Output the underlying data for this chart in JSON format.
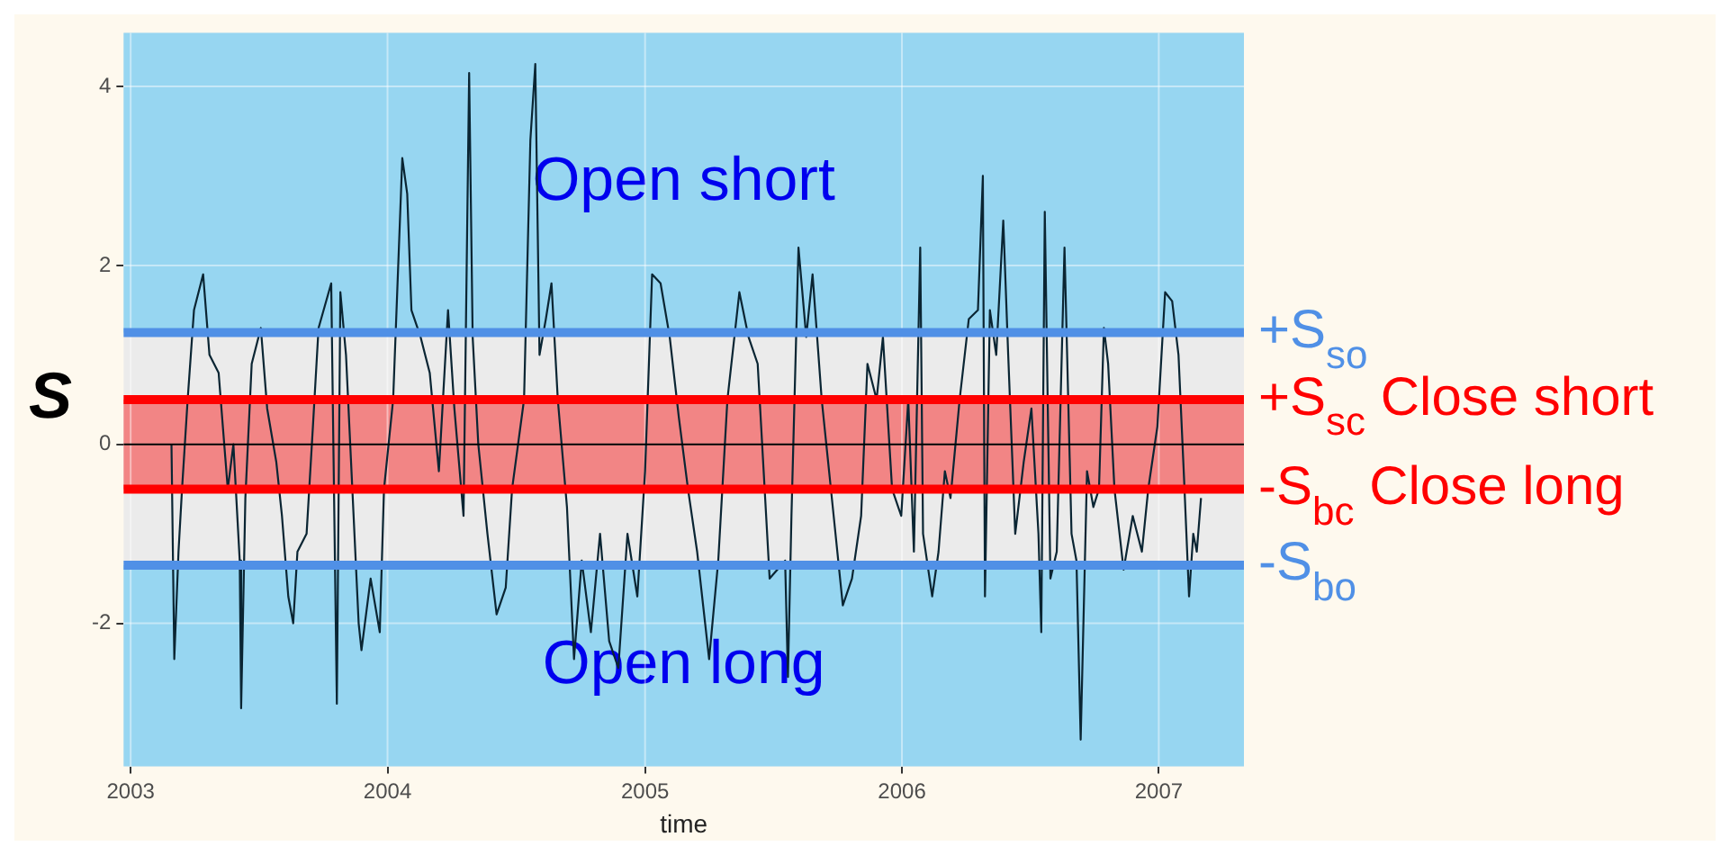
{
  "chart_data": {
    "type": "line",
    "xlabel": "time",
    "ylabel": "S",
    "x": [
      "2003-02-28",
      "2003-03-04",
      "2003-03-10",
      "2003-03-15",
      "2003-03-23",
      "2003-04-01",
      "2003-04-14",
      "2003-04-23",
      "2003-05-06",
      "2003-05-19",
      "2003-05-27",
      "2003-06-05",
      "2003-06-07",
      "2003-06-13",
      "2003-06-22",
      "2003-07-05",
      "2003-07-14",
      "2003-07-27",
      "2003-08-04",
      "2003-08-13",
      "2003-08-20",
      "2003-08-26",
      "2003-09-08",
      "2003-09-17",
      "2003-09-25",
      "2003-10-13",
      "2003-10-21",
      "2003-10-26",
      "2003-11-03",
      "2003-11-12",
      "2003-11-21",
      "2003-11-25",
      "2003-12-08",
      "2003-12-21",
      "2003-12-27",
      "2004-01-09",
      "2004-01-22",
      "2004-01-29",
      "2004-02-04",
      "2004-02-17",
      "2004-03-01",
      "2004-03-14",
      "2004-03-27",
      "2004-04-05",
      "2004-04-18",
      "2004-04-26",
      "2004-05-01",
      "2004-05-09",
      "2004-05-22",
      "2004-06-04",
      "2004-06-17",
      "2004-06-26",
      "2004-07-13",
      "2004-07-22",
      "2004-07-29",
      "2004-08-04",
      "2004-08-13",
      "2004-08-21",
      "2004-08-30",
      "2004-09-12",
      "2004-09-22",
      "2004-10-03",
      "2004-10-16",
      "2004-10-29",
      "2004-11-11",
      "2004-11-24",
      "2004-12-07",
      "2004-12-21",
      "2005-01-01",
      "2005-01-11",
      "2005-01-23",
      "2005-02-05",
      "2005-02-18",
      "2005-03-03",
      "2005-03-16",
      "2005-04-02",
      "2005-04-15",
      "2005-04-28",
      "2005-05-15",
      "2005-05-28",
      "2005-06-10",
      "2005-06-27",
      "2005-07-19",
      "2005-07-23",
      "2005-07-28",
      "2005-08-07",
      "2005-08-18",
      "2005-08-27",
      "2005-09-09",
      "2005-09-26",
      "2005-10-09",
      "2005-10-22",
      "2005-11-04",
      "2005-11-13",
      "2005-11-26",
      "2005-12-05",
      "2005-12-18",
      "2005-12-31",
      "2006-01-10",
      "2006-01-18",
      "2006-01-27",
      "2006-01-31",
      "2006-02-13",
      "2006-02-22",
      "2006-03-03",
      "2006-03-11",
      "2006-03-24",
      "2006-04-06",
      "2006-04-19",
      "2006-04-26",
      "2006-04-29",
      "2006-05-06",
      "2006-05-15",
      "2006-05-25",
      "2006-06-01",
      "2006-06-11",
      "2006-06-23",
      "2006-07-04",
      "2006-07-14",
      "2006-07-18",
      "2006-07-23",
      "2006-07-31",
      "2006-08-09",
      "2006-08-20",
      "2006-08-30",
      "2006-09-06",
      "2006-09-12",
      "2006-09-21",
      "2006-09-30",
      "2006-10-08",
      "2006-10-15",
      "2006-10-21",
      "2006-10-30",
      "2006-11-12",
      "2006-11-25",
      "2006-12-08",
      "2006-12-17",
      "2006-12-30",
      "2007-01-10",
      "2007-01-20",
      "2007-01-29",
      "2007-02-06",
      "2007-02-13",
      "2007-02-19",
      "2007-02-24",
      "2007-03-02"
    ],
    "series": [
      {
        "color": "#0a2533",
        "values": [
          0.0,
          -2.4,
          -1.2,
          -0.5,
          0.5,
          1.5,
          1.9,
          1.0,
          0.8,
          -0.5,
          0.0,
          -1.3,
          -2.95,
          -0.6,
          0.9,
          1.3,
          0.4,
          -0.2,
          -0.8,
          -1.7,
          -2.0,
          -1.2,
          -1.0,
          0.2,
          1.3,
          1.8,
          -2.9,
          1.7,
          1.0,
          -0.5,
          -2.0,
          -2.3,
          -1.5,
          -2.1,
          -0.5,
          0.5,
          3.2,
          2.8,
          1.5,
          1.2,
          0.8,
          -0.3,
          1.5,
          0.4,
          -0.8,
          4.15,
          1.2,
          0.0,
          -1.0,
          -1.9,
          -1.6,
          -0.5,
          0.5,
          3.4,
          4.25,
          1.0,
          1.4,
          1.8,
          0.5,
          -0.7,
          -2.4,
          -1.3,
          -2.1,
          -1.0,
          -2.2,
          -2.5,
          -1.0,
          -1.7,
          -0.3,
          1.9,
          1.8,
          1.2,
          0.3,
          -0.5,
          -1.2,
          -2.4,
          -1.3,
          0.5,
          1.7,
          1.2,
          0.9,
          -1.5,
          -1.3,
          -2.6,
          -0.8,
          2.2,
          1.2,
          1.9,
          0.5,
          -0.8,
          -1.8,
          -1.5,
          -0.8,
          0.9,
          0.5,
          1.2,
          -0.5,
          -0.8,
          0.5,
          -1.2,
          2.2,
          -1.0,
          -1.7,
          -1.2,
          -0.3,
          -0.6,
          0.5,
          1.4,
          1.5,
          3.0,
          -1.7,
          1.5,
          1.0,
          2.5,
          1.0,
          -1.0,
          -0.2,
          0.4,
          -1.0,
          -2.1,
          2.6,
          -1.5,
          -1.2,
          2.2,
          -1.0,
          -1.3,
          -3.3,
          -0.3,
          -0.7,
          -0.5,
          1.3,
          0.9,
          -0.5,
          -1.4,
          -0.8,
          -1.2,
          -0.5,
          0.2,
          1.7,
          1.6,
          1.0,
          -0.4,
          -1.7,
          -1.0,
          -1.2,
          -0.6
        ]
      }
    ],
    "xlim": [
      "2002-12-22",
      "2007-05-02"
    ],
    "xticks": [
      "2003",
      "2004",
      "2005",
      "2006",
      "2007"
    ],
    "ylim": [
      -3.6,
      4.6
    ],
    "yticks": [
      -2,
      0,
      2,
      4
    ],
    "grid": true,
    "marker": "none",
    "line_style": "solid",
    "bands": [
      {
        "axis": "y",
        "from": 1.25,
        "to": 4.6,
        "label": "Open short",
        "color": "#97d6f1"
      },
      {
        "axis": "y",
        "from": -3.6,
        "to": -1.35,
        "label": "Open long",
        "color": "#97d6f1"
      },
      {
        "axis": "y",
        "from": -0.5,
        "to": 0.5,
        "label": null,
        "color": "#f28585"
      }
    ],
    "ref_lines": [
      {
        "axis": "y",
        "value": 0,
        "label": null,
        "color": "#000000"
      },
      {
        "axis": "y",
        "value": 1.25,
        "label": "+S$_{so}$",
        "color": "#5090e6"
      },
      {
        "axis": "y",
        "value": 0.5,
        "label": "+S$_{sc}$ Close short",
        "color": "#ff0000"
      },
      {
        "axis": "y",
        "value": -0.5,
        "label": "-S$_{bc}$ Close long",
        "color": "#ff0000"
      },
      {
        "axis": "y",
        "value": -1.35,
        "label": "-S$_{bo}$",
        "color": "#5090e6"
      }
    ]
  }
}
